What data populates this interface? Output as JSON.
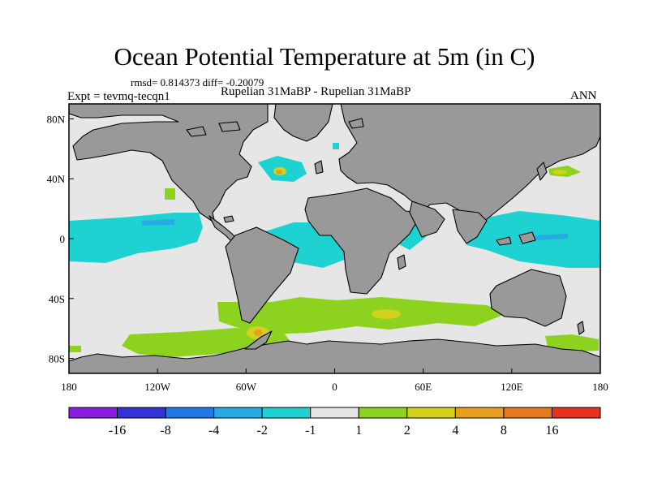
{
  "title": "Ocean Potential Temperature at 5m (in C)",
  "stats": "rmsd= 0.814373 diff= -0.20079",
  "experiment": "Expt = tevmq-tecqn1",
  "comparison": "Rupelian  31MaBP - Rupelian  31MaBP",
  "season": "ANN",
  "axes": {
    "x_ticks": [
      {
        "value": -180,
        "label": "180"
      },
      {
        "value": -120,
        "label": "120W"
      },
      {
        "value": -60,
        "label": "60W"
      },
      {
        "value": 0,
        "label": "0"
      },
      {
        "value": 60,
        "label": "60E"
      },
      {
        "value": 120,
        "label": "120E"
      },
      {
        "value": 180,
        "label": "180"
      }
    ],
    "y_ticks": [
      {
        "value": 80,
        "label": "80N"
      },
      {
        "value": 40,
        "label": "40N"
      },
      {
        "value": 0,
        "label": "0"
      },
      {
        "value": -40,
        "label": "40S"
      },
      {
        "value": -80,
        "label": "80S"
      }
    ],
    "lon_range": [
      -180,
      180
    ],
    "lat_range": [
      -90,
      90
    ]
  },
  "colors": {
    "land": "#999999",
    "ocean_neutral": "#e6e6e6"
  },
  "colorbar": {
    "colors": [
      "#8a1ee0",
      "#3232d6",
      "#1e78e6",
      "#28aae6",
      "#1ed2d2",
      "#e6e6e6",
      "#8cd21e",
      "#d2d21e",
      "#e6a01e",
      "#e6781e",
      "#e6321e"
    ],
    "labels": [
      "-16",
      "-8",
      "-4",
      "-2",
      "-1",
      "1",
      "2",
      "4",
      "8",
      "16"
    ]
  }
}
